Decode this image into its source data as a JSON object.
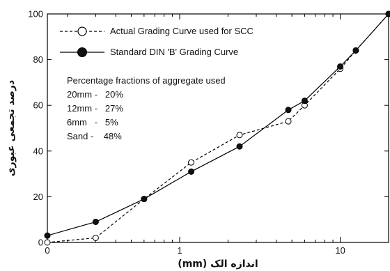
{
  "chart_data": {
    "type": "line",
    "xscale": "log",
    "xlim": [
      0.15,
      20
    ],
    "ylim": [
      0,
      100
    ],
    "x_ticks": [
      {
        "value": 0.1,
        "label": "0"
      },
      {
        "value": 1,
        "label": "1"
      },
      {
        "value": 10,
        "label": "10"
      }
    ],
    "y_ticks": [
      0,
      20,
      40,
      60,
      80,
      100
    ],
    "xlabel": "اندازه الک (mm)",
    "ylabel": "درصد تجمعی عبوری",
    "legend_placement": "top-left",
    "grid": false,
    "series": [
      {
        "name": "Actual Grading Curve used for SCC",
        "marker": "open-circle",
        "line": "dashed",
        "x": [
          0.15,
          0.3,
          0.6,
          1.18,
          2.36,
          4.75,
          6,
          10,
          12.5,
          20
        ],
        "y": [
          0,
          2,
          19,
          35,
          47,
          53,
          60,
          76,
          84,
          100
        ]
      },
      {
        "name": "Standard DIN 'B' Grading Curve",
        "marker": "filled-circle",
        "line": "solid",
        "x": [
          0.15,
          0.3,
          0.6,
          1.18,
          2.36,
          4.75,
          6,
          10,
          12.5,
          20
        ],
        "y": [
          3,
          9,
          19,
          31,
          42,
          58,
          62,
          77,
          84,
          100
        ]
      }
    ],
    "annotation": {
      "title": "Percentage fractions of aggregate used",
      "rows": [
        "20mm -   20%",
        "12mm -   27%",
        "6mm   -   5%",
        "Sand -    48%"
      ]
    }
  }
}
